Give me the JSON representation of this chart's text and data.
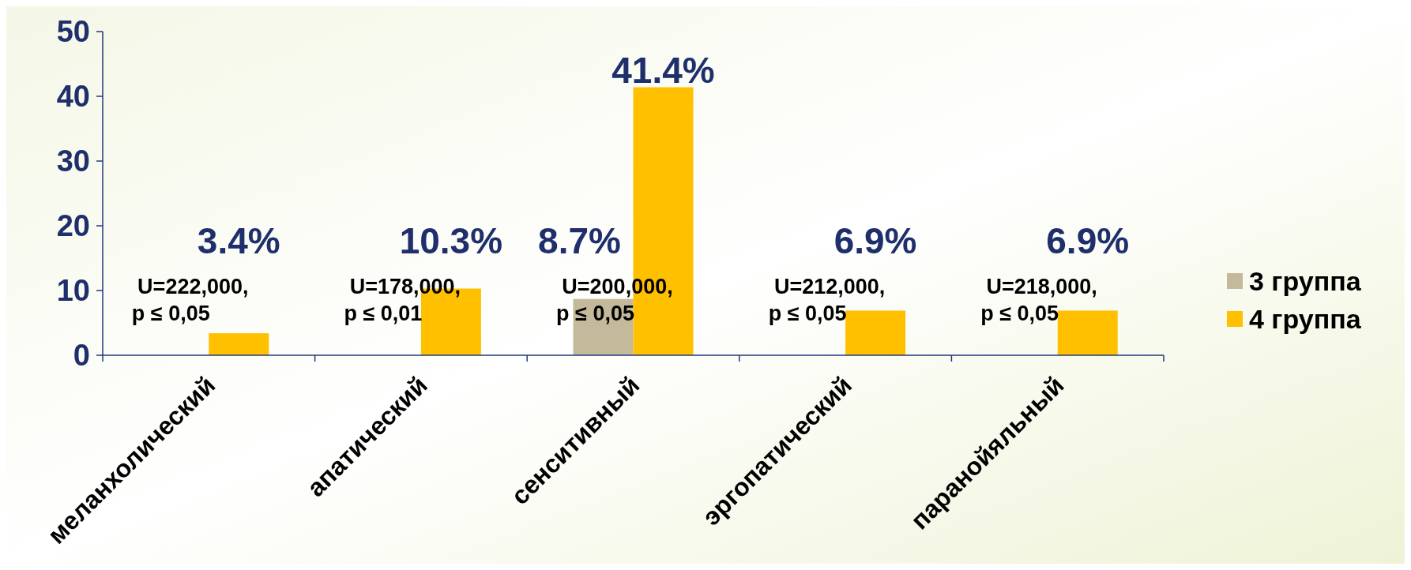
{
  "chart_data": {
    "type": "bar",
    "categories": [
      "меланхолический",
      "апатический",
      "сенситивный",
      "эргопатический",
      "паранойяльный"
    ],
    "series": [
      {
        "name": "3 группа",
        "color": "#c4b99a",
        "values": [
          null,
          null,
          8.7,
          null,
          null
        ],
        "value_labels": [
          null,
          null,
          "8.7%",
          null,
          null
        ]
      },
      {
        "name": "4 группа",
        "color": "#ffc000",
        "values": [
          3.4,
          10.3,
          41.4,
          6.9,
          6.9
        ],
        "value_labels": [
          "3.4%",
          "10.3%",
          "41.4%",
          "6.9%",
          "6.9%"
        ]
      }
    ],
    "ylim": [
      0,
      50
    ],
    "yticks": [
      0,
      10,
      20,
      30,
      40,
      50
    ],
    "grid": false,
    "legend": "right",
    "annotations": [
      "U=222,000,\np ≤ 0,05",
      "U=178,000,\np ≤ 0,01",
      "U=200,000,\np ≤ 0,05",
      "U=212,000,\np ≤ 0,05",
      "U=218,000,\np ≤ 0,05"
    ]
  }
}
